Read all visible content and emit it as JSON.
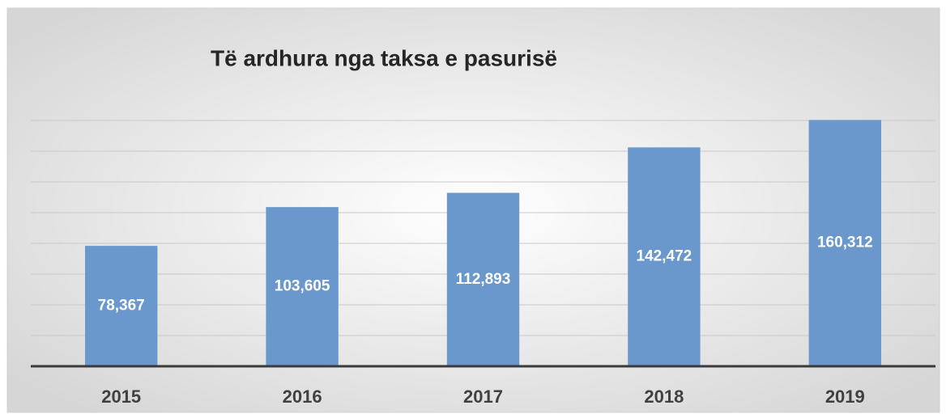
{
  "chart_data": {
    "type": "bar",
    "title": "Të ardhura nga taksa e pasurisë",
    "categories": [
      "2015",
      "2016",
      "2017",
      "2018",
      "2019"
    ],
    "values": [
      78367,
      103605,
      112893,
      142472,
      160312
    ],
    "value_labels": [
      "78,367",
      "103,605",
      "112,893",
      "142,472",
      "160,312"
    ],
    "color": "#6a97cc",
    "ylim": [
      0,
      180000
    ],
    "yticks": [
      0,
      20000,
      40000,
      60000,
      80000,
      100000,
      120000,
      140000,
      160000
    ],
    "grid": true
  }
}
